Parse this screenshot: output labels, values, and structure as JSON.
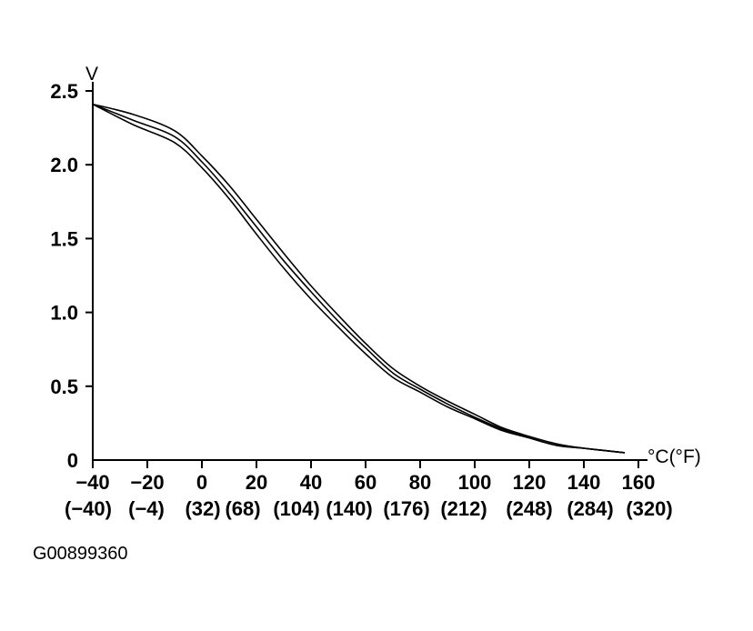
{
  "figure_id": "G00899360",
  "chart_data": {
    "type": "line",
    "ylabel": "V",
    "xlabel": "°C(°F)",
    "ylim": [
      0,
      2.5
    ],
    "xlim": [
      -40,
      160
    ],
    "y_ticks": [
      "0",
      "0.5",
      "1.0",
      "1.5",
      "2.0",
      "2.5"
    ],
    "y_tick_values": [
      0,
      0.5,
      1.0,
      1.5,
      2.0,
      2.5
    ],
    "x_ticks": [
      "−40",
      "−20",
      "0",
      "20",
      "40",
      "60",
      "80",
      "100",
      "120",
      "140",
      "160"
    ],
    "x_tick_values": [
      -40,
      -20,
      0,
      20,
      40,
      60,
      80,
      100,
      120,
      140,
      160
    ],
    "x_ticks_f": [
      "(−40)",
      "(−4)",
      "(32)",
      "(68)",
      "(104)",
      "(140)",
      "(176)",
      "(212)",
      "(248)",
      "(284)",
      "(320)"
    ],
    "grid": false,
    "series": [
      {
        "x": [
          -40,
          -25,
          -10,
          0,
          10,
          20,
          30,
          40,
          50,
          60,
          70,
          80,
          90,
          100,
          110,
          120,
          130,
          140,
          150,
          155
        ],
        "y": [
          2.41,
          2.34,
          2.23,
          2.06,
          1.86,
          1.63,
          1.4,
          1.18,
          0.98,
          0.79,
          0.62,
          0.5,
          0.4,
          0.31,
          0.22,
          0.16,
          0.11,
          0.08,
          0.06,
          0.05
        ]
      },
      {
        "x": [
          -40,
          -25,
          -10,
          0,
          10,
          20,
          30,
          40,
          50,
          60,
          70,
          80,
          90,
          100,
          110,
          120,
          130,
          140,
          150,
          155
        ],
        "y": [
          2.41,
          2.3,
          2.19,
          2.02,
          1.81,
          1.58,
          1.35,
          1.14,
          0.94,
          0.76,
          0.59,
          0.48,
          0.38,
          0.29,
          0.21,
          0.15,
          0.1,
          0.08,
          0.06,
          0.05
        ]
      },
      {
        "x": [
          -40,
          -25,
          -10,
          0,
          10,
          20,
          30,
          40,
          50,
          60,
          70,
          80,
          90,
          100,
          110,
          120,
          130,
          140,
          150,
          155
        ],
        "y": [
          2.41,
          2.27,
          2.15,
          1.98,
          1.77,
          1.53,
          1.3,
          1.09,
          0.9,
          0.72,
          0.56,
          0.46,
          0.36,
          0.28,
          0.2,
          0.15,
          0.1,
          0.08,
          0.06,
          0.05
        ]
      }
    ]
  }
}
